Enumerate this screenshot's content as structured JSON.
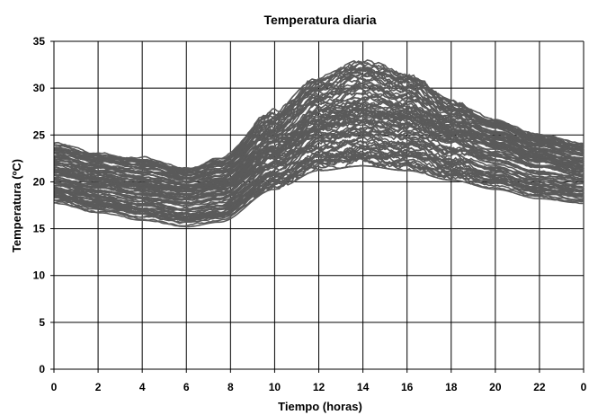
{
  "chart_data": {
    "type": "line",
    "title": "Temperatura diaria",
    "xlabel": "Tiempo (horas)",
    "ylabel": "Temperatura (ºC)",
    "x_ticks": [
      "0",
      "2",
      "4",
      "6",
      "8",
      "10",
      "12",
      "14",
      "16",
      "18",
      "20",
      "22",
      "0"
    ],
    "y_ticks": [
      "0",
      "5",
      "10",
      "15",
      "20",
      "25",
      "30",
      "35"
    ],
    "xlim": [
      0,
      24
    ],
    "ylim": [
      0,
      35
    ],
    "grid": true,
    "legend": "none",
    "series_color": "#5a5a5a",
    "series_profiles": {
      "hours": [
        0,
        2,
        4,
        6,
        7.5,
        10,
        12,
        14,
        16,
        18,
        20,
        22,
        24
      ],
      "min": [
        18.0,
        17.0,
        16.2,
        15.5,
        16.0,
        19.5,
        21.5,
        22.0,
        21.5,
        20.5,
        19.5,
        18.5,
        18.0
      ],
      "median": [
        21.0,
        20.2,
        19.5,
        19.0,
        19.5,
        23.5,
        26.5,
        27.5,
        27.0,
        25.5,
        24.0,
        22.5,
        21.5
      ],
      "max": [
        24.0,
        23.0,
        22.5,
        21.5,
        22.5,
        27.5,
        31.0,
        32.8,
        31.5,
        28.5,
        26.5,
        25.0,
        24.0
      ]
    }
  }
}
